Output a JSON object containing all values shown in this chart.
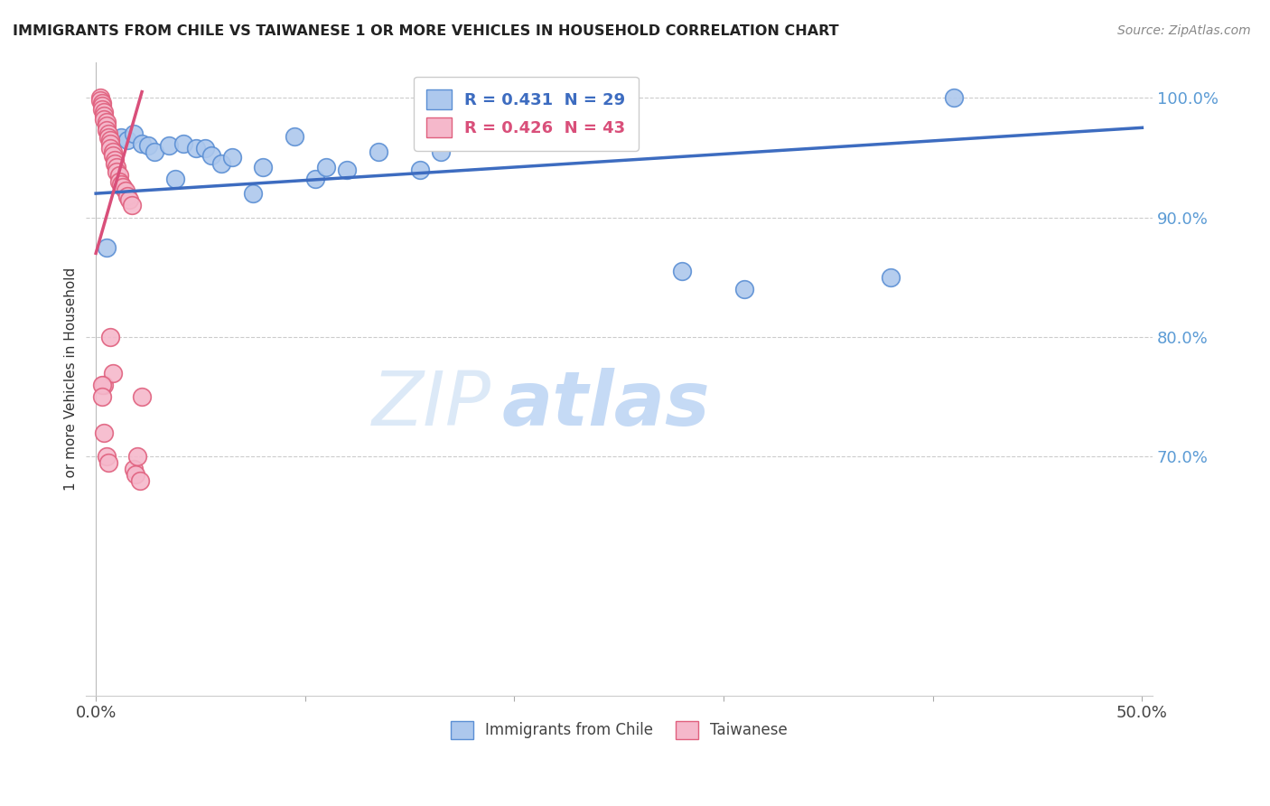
{
  "title": "IMMIGRANTS FROM CHILE VS TAIWANESE 1 OR MORE VEHICLES IN HOUSEHOLD CORRELATION CHART",
  "source": "Source: ZipAtlas.com",
  "ylabel": "1 or more Vehicles in Household",
  "xlim": [
    -0.005,
    0.505
  ],
  "ylim": [
    0.5,
    1.03
  ],
  "xtick_positions": [
    0.0,
    0.1,
    0.2,
    0.3,
    0.4,
    0.5
  ],
  "xtick_labels": [
    "0.0%",
    "",
    "",
    "",
    "",
    "50.0%"
  ],
  "ytick_positions_right": [
    1.0,
    0.9,
    0.8,
    0.7
  ],
  "ytick_labels_right": [
    "100.0%",
    "90.0%",
    "80.0%",
    "70.0%"
  ],
  "blue_color": "#adc8ed",
  "blue_edge_color": "#5b8fd4",
  "pink_color": "#f5b8cb",
  "pink_edge_color": "#e0607e",
  "blue_line_color": "#3d6cc0",
  "pink_line_color": "#d94f7a",
  "right_axis_color": "#5b9bd5",
  "background_color": "#ffffff",
  "grid_color": "#cccccc",
  "watermark_color": "#dce9f7",
  "blue_scatter_x": [
    0.005,
    0.012,
    0.015,
    0.018,
    0.022,
    0.025,
    0.028,
    0.035,
    0.038,
    0.042,
    0.048,
    0.052,
    0.055,
    0.06,
    0.065,
    0.075,
    0.08,
    0.095,
    0.105,
    0.11,
    0.12,
    0.135,
    0.155,
    0.165,
    0.215,
    0.28,
    0.31,
    0.38,
    0.41
  ],
  "blue_scatter_y": [
    0.875,
    0.967,
    0.965,
    0.97,
    0.962,
    0.96,
    0.955,
    0.96,
    0.932,
    0.962,
    0.958,
    0.958,
    0.952,
    0.945,
    0.95,
    0.92,
    0.942,
    0.968,
    0.932,
    0.942,
    0.94,
    0.955,
    0.94,
    0.955,
    0.965,
    0.855,
    0.84,
    0.85,
    1.0
  ],
  "pink_scatter_x": [
    0.002,
    0.002,
    0.003,
    0.003,
    0.003,
    0.004,
    0.004,
    0.004,
    0.005,
    0.005,
    0.005,
    0.006,
    0.006,
    0.007,
    0.007,
    0.007,
    0.008,
    0.008,
    0.009,
    0.009,
    0.01,
    0.01,
    0.011,
    0.011,
    0.012,
    0.013,
    0.014,
    0.015,
    0.016,
    0.017,
    0.018,
    0.019,
    0.02,
    0.021,
    0.022,
    0.004,
    0.005,
    0.006,
    0.007,
    0.008,
    0.003,
    0.003,
    0.004
  ],
  "pink_scatter_y": [
    1.0,
    0.998,
    0.996,
    0.993,
    0.99,
    0.988,
    0.985,
    0.982,
    0.98,
    0.977,
    0.973,
    0.97,
    0.967,
    0.965,
    0.962,
    0.958,
    0.955,
    0.952,
    0.948,
    0.945,
    0.942,
    0.938,
    0.935,
    0.93,
    0.928,
    0.925,
    0.922,
    0.918,
    0.915,
    0.91,
    0.69,
    0.685,
    0.7,
    0.68,
    0.75,
    0.76,
    0.7,
    0.695,
    0.8,
    0.77,
    0.76,
    0.75,
    0.72
  ],
  "blue_trendline_x0": 0.0,
  "blue_trendline_x1": 0.5,
  "blue_trendline_y0": 0.92,
  "blue_trendline_y1": 0.975,
  "pink_trendline_x0": 0.0,
  "pink_trendline_x1": 0.022,
  "pink_trendline_y0": 0.87,
  "pink_trendline_y1": 1.005,
  "legend_text_blue": "R = 0.431  N = 29",
  "legend_text_pink": "R = 0.426  N = 43",
  "bottom_legend_labels": [
    "Immigrants from Chile",
    "Taiwanese"
  ]
}
